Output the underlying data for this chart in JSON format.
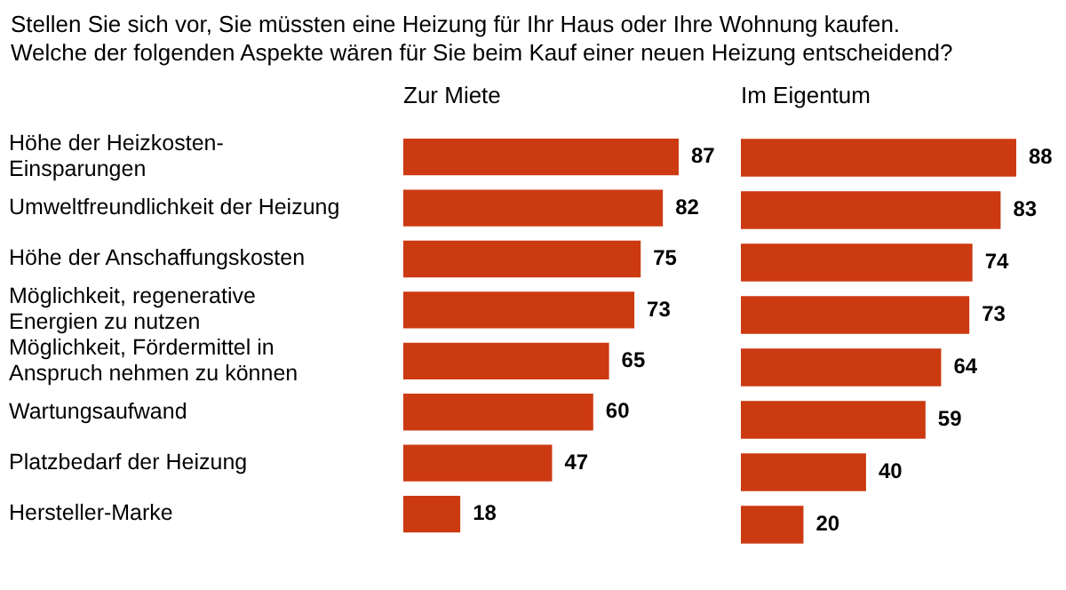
{
  "chart_data": [
    {
      "type": "bar",
      "orientation": "horizontal",
      "title": "Stellen Sie sich vor, Sie müssten eine Heizung für Ihr Haus oder Ihre Wohnung kaufen.\nWelche der folgenden Aspekte wären für Sie beim Kauf einer neuen Heizung entscheidend?",
      "subtitle": "Zur Miete",
      "categories": [
        "Höhe der Heizkosten-\nEinsparungen",
        "Umweltfreundlichkeit der Heizung",
        "Höhe der Anschaffungskosten",
        "Möglichkeit, regenerative\nEnergien zu nutzen",
        "Möglichkeit, Fördermittel in\nAnspruch nehmen zu können",
        "Wartungsaufwand",
        "Platzbedarf der Heizung",
        "Hersteller-Marke"
      ],
      "values": [
        87,
        82,
        75,
        73,
        65,
        60,
        47,
        18
      ],
      "color": "#cc3a12",
      "data_labels": true,
      "tick_labels": "y"
    },
    {
      "type": "bar",
      "orientation": "horizontal",
      "subtitle": "Im Eigentum",
      "categories": [
        null,
        null,
        null,
        null,
        null,
        null,
        null,
        null
      ],
      "values": [
        88,
        83,
        74,
        73,
        64,
        59,
        40,
        20
      ],
      "color": "#cc3a12",
      "data_labels": true,
      "tick_labels": false
    }
  ]
}
